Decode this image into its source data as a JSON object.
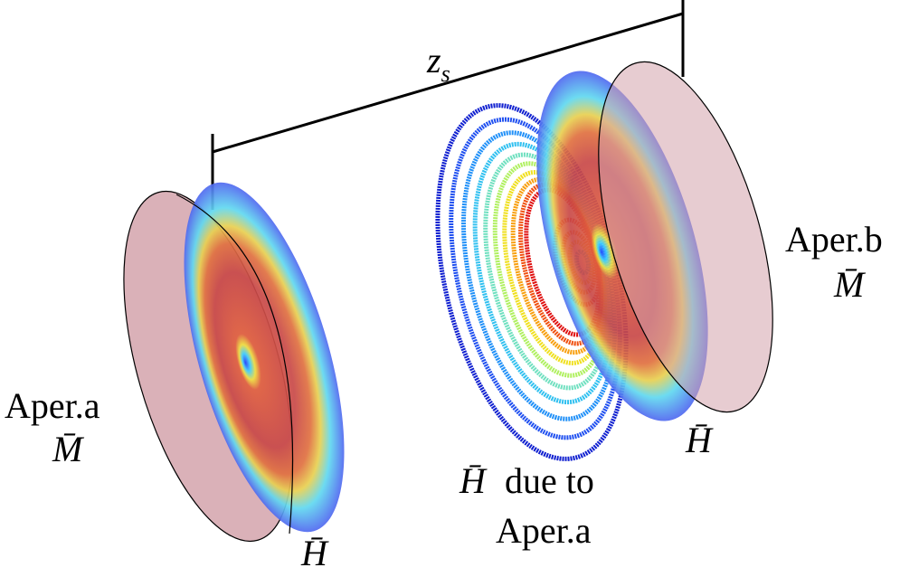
{
  "distance_label": {
    "symbol": "z",
    "subscript": "s"
  },
  "aperture_a": {
    "name": "Aper.a",
    "field_m": "M̄",
    "field_h": "H̄"
  },
  "aperture_b": {
    "name": "Aper.b",
    "field_m": "M̄",
    "field_h": "H̄"
  },
  "propagated_field": {
    "field": "H̄",
    "caption_1": "due to",
    "caption_2": "Aper.a"
  }
}
